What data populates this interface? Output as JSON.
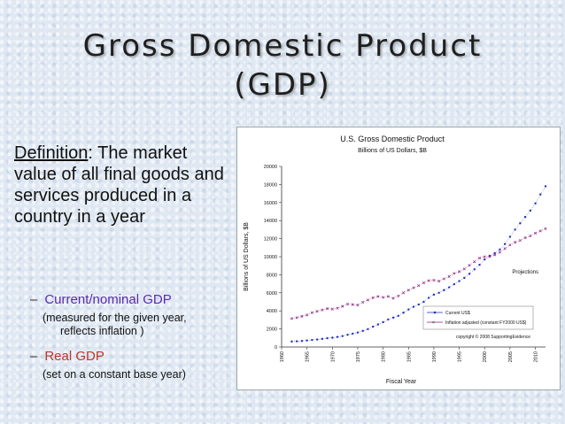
{
  "slide": {
    "title_line1": "Gross Domestic Product",
    "title_line2": "(GDP)",
    "definition_term": "Definition",
    "definition_text": ": The market value of all final goods and services produced in a country in a year",
    "bullet1_dash": "–",
    "bullet1": "Current/nominal GDP",
    "bullet1_note_line1": "(measured for the given year,",
    "bullet1_note_line2": "reflects inflation )",
    "bullet2_dash": "–",
    "bullet2": "Real GDP",
    "bullet2_note": "(set on a constant base year)"
  },
  "chart_data": {
    "type": "scatter",
    "title": "U.S. Gross Domestic Product",
    "subtitle": "Billions of US Dollars, $B",
    "xlabel": "Fiscal Year",
    "ylabel": "Billions of US Dollars, $B",
    "xlim": [
      1960,
      2012
    ],
    "ylim": [
      0,
      20000
    ],
    "x_ticks": [
      1960,
      1965,
      1970,
      1975,
      1980,
      1985,
      1990,
      1995,
      2000,
      2005,
      2010
    ],
    "y_ticks": [
      0,
      2000,
      4000,
      6000,
      8000,
      10000,
      12000,
      14000,
      16000,
      18000,
      20000
    ],
    "annotation_projections": "Projections",
    "copyright": "copyright © 2008 SupportingEvidence",
    "legend_position": "bottom-right",
    "series": [
      {
        "name": "Current US$",
        "color": "#1f2fbf",
        "x": [
          1962,
          1963,
          1964,
          1965,
          1966,
          1967,
          1968,
          1969,
          1970,
          1971,
          1972,
          1973,
          1974,
          1975,
          1976,
          1977,
          1978,
          1979,
          1980,
          1981,
          1982,
          1983,
          1984,
          1985,
          1986,
          1987,
          1988,
          1989,
          1990,
          1991,
          1992,
          1993,
          1994,
          1995,
          1996,
          1997,
          1998,
          1999,
          2000,
          2001,
          2002,
          2003,
          2004,
          2005,
          2006,
          2007,
          2008,
          2009,
          2010,
          2011,
          2012
        ],
        "y": [
          600,
          630,
          670,
          720,
          780,
          830,
          900,
          970,
          1030,
          1110,
          1210,
          1350,
          1480,
          1600,
          1780,
          1980,
          2250,
          2500,
          2750,
          3050,
          3250,
          3450,
          3800,
          4150,
          4450,
          4700,
          5000,
          5450,
          5800,
          6000,
          6300,
          6600,
          6950,
          7300,
          7650,
          8100,
          8600,
          9100,
          9700,
          10100,
          10400,
          10800,
          11400,
          12200,
          13000,
          13700,
          14400,
          15100,
          15900,
          16900,
          17800
        ]
      },
      {
        "name": "Inflation adjusted (constant FY2000 US$)",
        "color": "#8b1f7f",
        "x": [
          1962,
          1963,
          1964,
          1965,
          1966,
          1967,
          1968,
          1969,
          1970,
          1971,
          1972,
          1973,
          1974,
          1975,
          1976,
          1977,
          1978,
          1979,
          1980,
          1981,
          1982,
          1983,
          1984,
          1985,
          1986,
          1987,
          1988,
          1989,
          1990,
          1991,
          1992,
          1993,
          1994,
          1995,
          1996,
          1997,
          1998,
          1999,
          2000,
          2001,
          2002,
          2003,
          2004,
          2005,
          2006,
          2007,
          2008,
          2009,
          2010,
          2011,
          2012
        ],
        "y": [
          3150,
          3250,
          3400,
          3550,
          3800,
          3950,
          4100,
          4250,
          4200,
          4300,
          4500,
          4750,
          4700,
          4650,
          4950,
          5200,
          5450,
          5600,
          5500,
          5600,
          5400,
          5650,
          6000,
          6300,
          6550,
          6800,
          7100,
          7350,
          7400,
          7300,
          7550,
          7800,
          8150,
          8350,
          8650,
          9050,
          9450,
          9850,
          10000,
          10000,
          10200,
          10500,
          10900,
          11300,
          11600,
          11800,
          12100,
          12300,
          12600,
          12850,
          13100
        ]
      }
    ]
  }
}
